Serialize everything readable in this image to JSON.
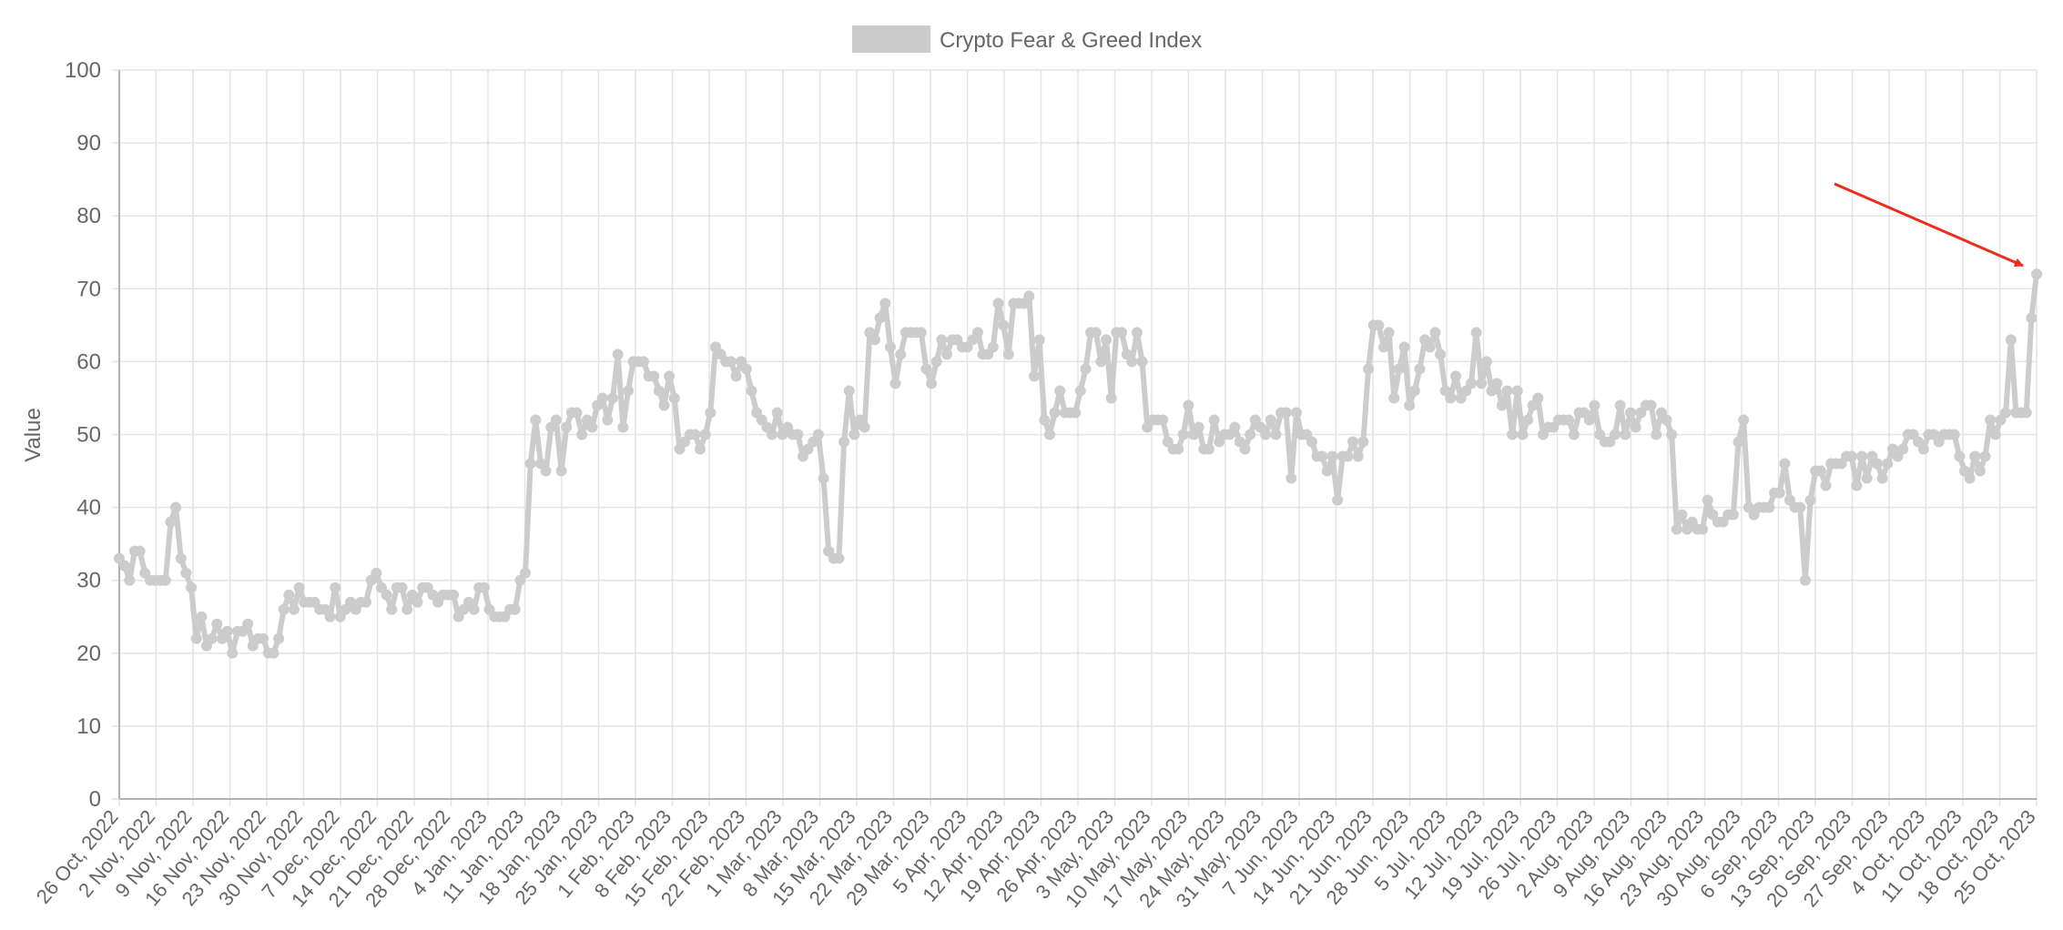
{
  "chart_data": {
    "type": "line",
    "legend": {
      "label": "Crypto Fear & Greed Index",
      "position": "top-center",
      "swatch_color": "#cccccc"
    },
    "ylabel": "Value",
    "xlabel": "",
    "ylim": [
      0,
      100
    ],
    "yticks": [
      0,
      10,
      20,
      30,
      40,
      50,
      60,
      70,
      80,
      90,
      100
    ],
    "grid": true,
    "line_color": "#cccccc",
    "x_tick_labels": [
      "26 Oct, 2022",
      "2 Nov, 2022",
      "9 Nov, 2022",
      "16 Nov, 2022",
      "23 Nov, 2022",
      "30 Nov, 2022",
      "7 Dec, 2022",
      "14 Dec, 2022",
      "21 Dec, 2022",
      "28 Dec, 2022",
      "4 Jan, 2023",
      "11 Jan, 2023",
      "18 Jan, 2023",
      "25 Jan, 2023",
      "1 Feb, 2023",
      "8 Feb, 2023",
      "15 Feb, 2023",
      "22 Feb, 2023",
      "1 Mar, 2023",
      "8 Mar, 2023",
      "15 Mar, 2023",
      "22 Mar, 2023",
      "29 Mar, 2023",
      "5 Apr, 2023",
      "12 Apr, 2023",
      "19 Apr, 2023",
      "26 Apr, 2023",
      "3 May, 2023",
      "10 May, 2023",
      "17 May, 2023",
      "24 May, 2023",
      "31 May, 2023",
      "7 Jun, 2023",
      "14 Jun, 2023",
      "21 Jun, 2023",
      "28 Jun, 2023",
      "5 Jul, 2023",
      "12 Jul, 2023",
      "19 Jul, 2023",
      "26 Jul, 2023",
      "2 Aug, 2023",
      "9 Aug, 2023",
      "16 Aug, 2023",
      "23 Aug, 2023",
      "30 Aug, 2023",
      "6 Sep, 2023",
      "13 Sep, 2023",
      "20 Sep, 2023",
      "27 Sep, 2023",
      "4 Oct, 2023",
      "11 Oct, 2023",
      "18 Oct, 2023",
      "25 Oct, 2023"
    ],
    "series": [
      {
        "name": "Crypto Fear & Greed Index",
        "values": [
          33,
          32,
          30,
          34,
          34,
          31,
          30,
          30,
          30,
          30,
          38,
          40,
          33,
          31,
          29,
          22,
          25,
          21,
          22,
          24,
          22,
          23,
          20,
          23,
          23,
          24,
          21,
          22,
          22,
          20,
          20,
          22,
          26,
          28,
          26,
          29,
          27,
          27,
          27,
          26,
          26,
          25,
          29,
          25,
          26,
          27,
          26,
          27,
          27,
          30,
          31,
          29,
          28,
          26,
          29,
          29,
          26,
          28,
          27,
          29,
          29,
          28,
          27,
          28,
          28,
          28,
          25,
          26,
          27,
          26,
          29,
          29,
          26,
          25,
          25,
          25,
          26,
          26,
          30,
          31,
          46,
          52,
          46,
          45,
          51,
          52,
          45,
          51,
          53,
          53,
          50,
          52,
          51,
          54,
          55,
          52,
          55,
          61,
          51,
          56,
          60,
          60,
          60,
          58,
          58,
          56,
          54,
          58,
          55,
          48,
          49,
          50,
          50,
          48,
          50,
          53,
          62,
          61,
          60,
          60,
          58,
          60,
          59,
          56,
          53,
          52,
          51,
          50,
          53,
          50,
          51,
          50,
          50,
          47,
          48,
          49,
          50,
          44,
          34,
          33,
          33,
          49,
          56,
          50,
          52,
          51,
          64,
          63,
          66,
          68,
          62,
          57,
          61,
          64,
          64,
          64,
          64,
          59,
          57,
          60,
          63,
          61,
          63,
          63,
          62,
          62,
          63,
          64,
          61,
          61,
          62,
          68,
          65,
          61,
          68,
          68,
          68,
          69,
          58,
          63,
          52,
          50,
          53,
          56,
          53,
          53,
          53,
          56,
          59,
          64,
          64,
          60,
          63,
          55,
          64,
          64,
          61,
          60,
          64,
          60,
          51,
          52,
          52,
          52,
          49,
          48,
          48,
          50,
          54,
          50,
          51,
          48,
          48,
          52,
          49,
          50,
          50,
          51,
          49,
          48,
          50,
          52,
          51,
          50,
          52,
          50,
          53,
          53,
          44,
          53,
          50,
          50,
          49,
          47,
          47,
          45,
          47,
          41,
          47,
          47,
          49,
          47,
          49,
          59,
          65,
          65,
          62,
          64,
          55,
          59,
          62,
          54,
          56,
          59,
          63,
          62,
          64,
          61,
          56,
          55,
          58,
          55,
          56,
          57,
          64,
          57,
          60,
          56,
          57,
          54,
          56,
          50,
          56,
          50,
          52,
          54,
          55,
          50,
          51,
          51,
          52,
          52,
          52,
          50,
          53,
          53,
          52,
          54,
          50,
          49,
          49,
          50,
          54,
          50,
          53,
          51,
          53,
          54,
          54,
          50,
          53,
          52,
          50,
          37,
          39,
          37,
          38,
          37,
          37,
          41,
          39,
          38,
          38,
          39,
          39,
          49,
          52,
          40,
          39,
          40,
          40,
          40,
          42,
          42,
          46,
          41,
          40,
          40,
          30,
          41,
          45,
          45,
          43,
          46,
          46,
          46,
          47,
          47,
          43,
          47,
          44,
          47,
          46,
          44,
          46,
          48,
          47,
          48,
          50,
          50,
          49,
          48,
          50,
          50,
          49,
          50,
          50,
          50,
          47,
          45,
          44,
          47,
          45,
          47,
          52,
          50,
          52,
          53,
          63,
          53,
          53,
          53,
          66,
          72
        ]
      }
    ],
    "annotations": [
      {
        "type": "arrow",
        "color": "#ee2c1a",
        "description_target": "last data point"
      }
    ]
  }
}
